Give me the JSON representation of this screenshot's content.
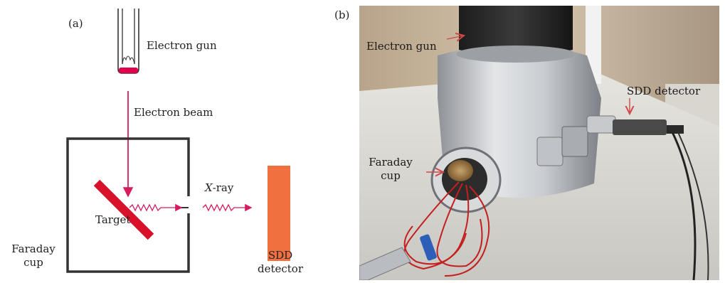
{
  "panel_a": {
    "tag": "(a)",
    "electron_gun": "Electron gun",
    "electron_beam": "Electron beam",
    "xray_italic": "X",
    "xray_suffix": "-ray",
    "target": "Target",
    "faraday_line1": "Faraday",
    "faraday_line2": "cup",
    "sdd_line1": "SDD",
    "sdd_line2": "detector"
  },
  "panel_b": {
    "tag": "(b)",
    "electron_gun": "Electron gun",
    "sdd_detector": "SDD detector",
    "faraday_line1": "Faraday",
    "faraday_line2": "cup"
  },
  "colors": {
    "beam": "#d81b60",
    "target": "#d9122b",
    "detector": "#f07040",
    "gun_tip": "#e0004d",
    "chamber": "#333333",
    "photo_arrow": "#d04848"
  }
}
